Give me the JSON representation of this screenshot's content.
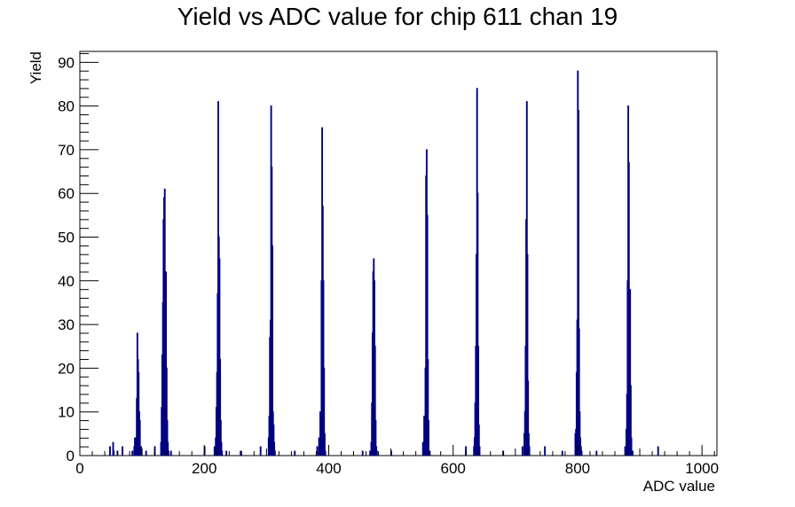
{
  "chart_data": {
    "type": "histogram",
    "title": "Yield vs ADC value for chip 611 chan 19",
    "xlabel": "ADC value",
    "ylabel": "Yield",
    "xlim": [
      0,
      1024
    ],
    "ylim": [
      0,
      92.5
    ],
    "x_ticks": [
      0,
      200,
      400,
      600,
      800,
      1000
    ],
    "y_ticks": [
      0,
      10,
      20,
      30,
      40,
      50,
      60,
      70,
      80,
      90
    ],
    "x_tick_labels": [
      "0",
      "200",
      "400",
      "600",
      "800",
      "1000"
    ],
    "y_tick_labels": [
      "0",
      "10",
      "20",
      "30",
      "40",
      "50",
      "60",
      "70",
      "80",
      "90"
    ],
    "line_color": "#000080",
    "frame_color": "#000000",
    "bin_width": 1,
    "bins": [
      {
        "x": 48,
        "y": 2
      },
      {
        "x": 53,
        "y": 3
      },
      {
        "x": 54,
        "y": 1
      },
      {
        "x": 60,
        "y": 1
      },
      {
        "x": 68,
        "y": 2
      },
      {
        "x": 84,
        "y": 1
      },
      {
        "x": 87,
        "y": 2
      },
      {
        "x": 88,
        "y": 4
      },
      {
        "x": 89,
        "y": 3
      },
      {
        "x": 90,
        "y": 4
      },
      {
        "x": 91,
        "y": 13
      },
      {
        "x": 92,
        "y": 28
      },
      {
        "x": 93,
        "y": 22
      },
      {
        "x": 94,
        "y": 19
      },
      {
        "x": 95,
        "y": 10
      },
      {
        "x": 96,
        "y": 8
      },
      {
        "x": 97,
        "y": 2
      },
      {
        "x": 98,
        "y": 2
      },
      {
        "x": 106,
        "y": 1
      },
      {
        "x": 120,
        "y": 2
      },
      {
        "x": 130,
        "y": 3
      },
      {
        "x": 131,
        "y": 11
      },
      {
        "x": 132,
        "y": 23
      },
      {
        "x": 133,
        "y": 35
      },
      {
        "x": 134,
        "y": 54
      },
      {
        "x": 135,
        "y": 59
      },
      {
        "x": 136,
        "y": 61
      },
      {
        "x": 137,
        "y": 42
      },
      {
        "x": 138,
        "y": 42
      },
      {
        "x": 139,
        "y": 20
      },
      {
        "x": 140,
        "y": 8
      },
      {
        "x": 141,
        "y": 3
      },
      {
        "x": 142,
        "y": 1
      },
      {
        "x": 146,
        "y": 1
      },
      {
        "x": 200,
        "y": 2
      },
      {
        "x": 216,
        "y": 2
      },
      {
        "x": 218,
        "y": 4
      },
      {
        "x": 219,
        "y": 11
      },
      {
        "x": 220,
        "y": 19
      },
      {
        "x": 221,
        "y": 37
      },
      {
        "x": 222,
        "y": 81
      },
      {
        "x": 223,
        "y": 50
      },
      {
        "x": 224,
        "y": 45
      },
      {
        "x": 225,
        "y": 22
      },
      {
        "x": 226,
        "y": 8
      },
      {
        "x": 227,
        "y": 3
      },
      {
        "x": 228,
        "y": 1
      },
      {
        "x": 235,
        "y": 1
      },
      {
        "x": 258,
        "y": 1
      },
      {
        "x": 290,
        "y": 2
      },
      {
        "x": 303,
        "y": 4
      },
      {
        "x": 304,
        "y": 9
      },
      {
        "x": 305,
        "y": 27
      },
      {
        "x": 306,
        "y": 31
      },
      {
        "x": 307,
        "y": 80
      },
      {
        "x": 308,
        "y": 66
      },
      {
        "x": 309,
        "y": 48
      },
      {
        "x": 310,
        "y": 10
      },
      {
        "x": 311,
        "y": 7
      },
      {
        "x": 312,
        "y": 3
      },
      {
        "x": 313,
        "y": 1
      },
      {
        "x": 345,
        "y": 1
      },
      {
        "x": 381,
        "y": 2
      },
      {
        "x": 384,
        "y": 4
      },
      {
        "x": 386,
        "y": 10
      },
      {
        "x": 387,
        "y": 9
      },
      {
        "x": 388,
        "y": 40
      },
      {
        "x": 389,
        "y": 75
      },
      {
        "x": 390,
        "y": 57
      },
      {
        "x": 391,
        "y": 40
      },
      {
        "x": 392,
        "y": 20
      },
      {
        "x": 393,
        "y": 5
      },
      {
        "x": 394,
        "y": 1
      },
      {
        "x": 454,
        "y": 1
      },
      {
        "x": 466,
        "y": 1
      },
      {
        "x": 468,
        "y": 3
      },
      {
        "x": 469,
        "y": 12
      },
      {
        "x": 470,
        "y": 28
      },
      {
        "x": 471,
        "y": 42
      },
      {
        "x": 472,
        "y": 45
      },
      {
        "x": 473,
        "y": 40
      },
      {
        "x": 474,
        "y": 25
      },
      {
        "x": 475,
        "y": 8
      },
      {
        "x": 476,
        "y": 2
      },
      {
        "x": 477,
        "y": 1
      },
      {
        "x": 500,
        "y": 1
      },
      {
        "x": 551,
        "y": 3
      },
      {
        "x": 553,
        "y": 9
      },
      {
        "x": 554,
        "y": 6
      },
      {
        "x": 555,
        "y": 20
      },
      {
        "x": 556,
        "y": 64
      },
      {
        "x": 557,
        "y": 70
      },
      {
        "x": 558,
        "y": 55
      },
      {
        "x": 559,
        "y": 22
      },
      {
        "x": 560,
        "y": 8
      },
      {
        "x": 561,
        "y": 1
      },
      {
        "x": 562,
        "y": 1
      },
      {
        "x": 620,
        "y": 2
      },
      {
        "x": 633,
        "y": 2
      },
      {
        "x": 634,
        "y": 4
      },
      {
        "x": 635,
        "y": 12
      },
      {
        "x": 636,
        "y": 25
      },
      {
        "x": 637,
        "y": 46
      },
      {
        "x": 638,
        "y": 84
      },
      {
        "x": 639,
        "y": 60
      },
      {
        "x": 640,
        "y": 25
      },
      {
        "x": 641,
        "y": 7
      },
      {
        "x": 642,
        "y": 2
      },
      {
        "x": 680,
        "y": 1
      },
      {
        "x": 711,
        "y": 2
      },
      {
        "x": 714,
        "y": 5
      },
      {
        "x": 715,
        "y": 10
      },
      {
        "x": 716,
        "y": 25
      },
      {
        "x": 717,
        "y": 54
      },
      {
        "x": 718,
        "y": 81
      },
      {
        "x": 719,
        "y": 46
      },
      {
        "x": 720,
        "y": 17
      },
      {
        "x": 721,
        "y": 5
      },
      {
        "x": 722,
        "y": 2
      },
      {
        "x": 747,
        "y": 2
      },
      {
        "x": 775,
        "y": 1
      },
      {
        "x": 796,
        "y": 5
      },
      {
        "x": 797,
        "y": 6
      },
      {
        "x": 798,
        "y": 19
      },
      {
        "x": 799,
        "y": 31
      },
      {
        "x": 800,
        "y": 88
      },
      {
        "x": 801,
        "y": 79
      },
      {
        "x": 802,
        "y": 29
      },
      {
        "x": 803,
        "y": 10
      },
      {
        "x": 804,
        "y": 4
      },
      {
        "x": 805,
        "y": 2
      },
      {
        "x": 806,
        "y": 1
      },
      {
        "x": 830,
        "y": 1
      },
      {
        "x": 876,
        "y": 2
      },
      {
        "x": 878,
        "y": 6
      },
      {
        "x": 879,
        "y": 14
      },
      {
        "x": 880,
        "y": 40
      },
      {
        "x": 881,
        "y": 80
      },
      {
        "x": 882,
        "y": 67
      },
      {
        "x": 883,
        "y": 33
      },
      {
        "x": 884,
        "y": 38
      },
      {
        "x": 885,
        "y": 16
      },
      {
        "x": 886,
        "y": 4
      },
      {
        "x": 887,
        "y": 1
      },
      {
        "x": 888,
        "y": 1
      },
      {
        "x": 929,
        "y": 2
      }
    ]
  }
}
